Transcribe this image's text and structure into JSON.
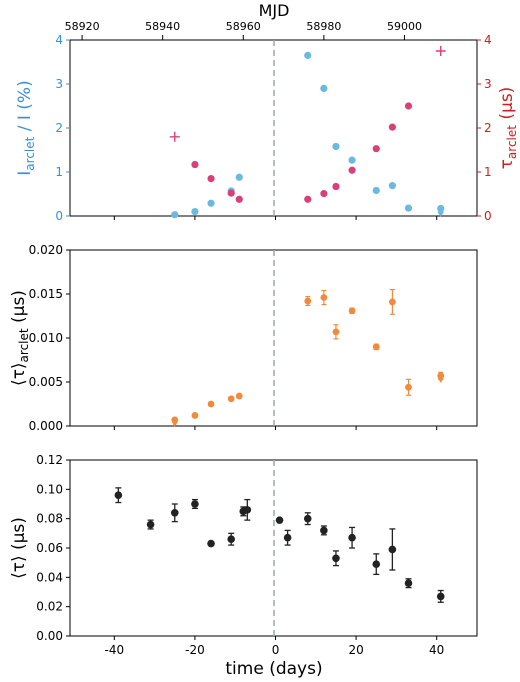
{
  "figure": {
    "top_axis_label": "MJD",
    "top_ticks": [
      58920,
      58940,
      58960,
      58980,
      59000
    ],
    "x_label": "time (days)",
    "x_ticks": [
      -40,
      -20,
      0,
      20,
      40
    ],
    "xlim": [
      -51,
      50
    ],
    "top_axis_offset_mjd": 58968
  },
  "colors": {
    "blue": "#6bb8e0",
    "pink": "#d9407a",
    "orange": "#f08a3c",
    "black": "#222222",
    "red_axis": "#cc1f1f",
    "blue_axis": "#3a8fd6",
    "vline": "#9aa8ae"
  },
  "chart_data": [
    {
      "type": "scatter",
      "panel": "top",
      "ylabel_left": "I_arclet / I (%)",
      "ylabel_right": "τ_arclet (μs)",
      "ylim_left": [
        0,
        4
      ],
      "ylim_right": [
        0,
        4
      ],
      "yticks_left": [
        0,
        1,
        2,
        3,
        4
      ],
      "yticks_right": [
        0,
        1,
        2,
        3,
        4
      ],
      "series": [
        {
          "axis": "left",
          "marker": "circle",
          "x": [
            -25,
            -20,
            -16,
            -11,
            -9,
            8,
            12,
            15,
            19,
            25,
            29,
            33,
            41
          ],
          "y": [
            0.03,
            0.1,
            0.29,
            0.57,
            0.88,
            3.65,
            2.9,
            1.58,
            1.27,
            0.58,
            0.69,
            0.18,
            0.17
          ]
        },
        {
          "axis": "left",
          "marker": "triangle-down",
          "x": [
            41
          ],
          "y": [
            0.03
          ]
        },
        {
          "axis": "right",
          "marker": "circle",
          "x": [
            -20,
            -16,
            -11,
            -9,
            8,
            12,
            15,
            19,
            25,
            29,
            33
          ],
          "y": [
            1.17,
            0.85,
            0.52,
            0.38,
            0.38,
            0.51,
            0.67,
            1.04,
            1.53,
            2.02,
            2.5
          ]
        },
        {
          "axis": "right",
          "marker": "plus",
          "x": [
            -25,
            41
          ],
          "y": [
            1.8,
            3.75
          ]
        }
      ]
    },
    {
      "type": "scatter",
      "panel": "middle",
      "ylabel": "⟨τ⟩_arclet (μs)",
      "ylim": [
        0,
        0.02
      ],
      "yticks": [
        "0.000",
        "0.005",
        "0.010",
        "0.015",
        "0.020"
      ],
      "x": [
        -25,
        -20,
        -16,
        -11,
        -9,
        8,
        12,
        15,
        19,
        25,
        29,
        33,
        41
      ],
      "y": [
        0.0007,
        0.0012,
        0.0025,
        0.0031,
        0.0034,
        0.0142,
        0.0146,
        0.0107,
        0.0131,
        0.009,
        0.0141,
        0.0044,
        0.0057
      ],
      "yerr": [
        0.0001,
        0.0001,
        0.0002,
        0.0002,
        0.0002,
        0.0005,
        0.0008,
        0.0008,
        0.0003,
        0.0003,
        0.0014,
        0.0009,
        0.0004
      ],
      "upper_limit": [
        true,
        false,
        false,
        false,
        false,
        false,
        false,
        false,
        false,
        false,
        false,
        false,
        true
      ]
    },
    {
      "type": "scatter",
      "panel": "bottom",
      "ylabel": "⟨τ⟩ (μs)",
      "ylim": [
        0,
        0.12
      ],
      "yticks": [
        "0.00",
        "0.02",
        "0.04",
        "0.06",
        "0.08",
        "0.10",
        "0.12"
      ],
      "x": [
        -39,
        -31,
        -25,
        -20,
        -16,
        -11,
        -8,
        -7,
        1,
        3,
        8,
        12,
        15,
        19,
        25,
        29,
        33,
        41
      ],
      "y": [
        0.096,
        0.076,
        0.084,
        0.09,
        0.063,
        0.066,
        0.085,
        0.086,
        0.079,
        0.067,
        0.08,
        0.072,
        0.053,
        0.067,
        0.049,
        0.059,
        0.036,
        0.027
      ],
      "yerr": [
        0.005,
        0.003,
        0.006,
        0.003,
        0.0,
        0.004,
        0.003,
        0.007,
        0.0,
        0.005,
        0.004,
        0.003,
        0.005,
        0.007,
        0.007,
        0.014,
        0.003,
        0.004
      ]
    }
  ]
}
